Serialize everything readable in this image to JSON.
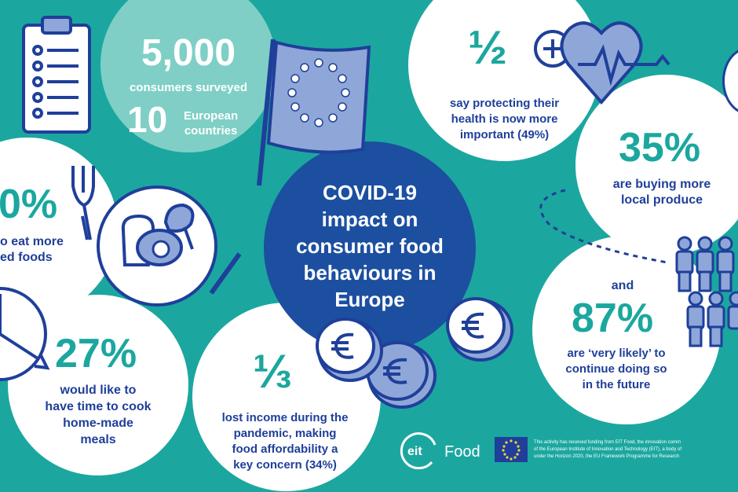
{
  "survey": {
    "consumers_number": "5,000",
    "consumers_label": "consumers surveyed",
    "countries_number": "10",
    "countries_label_line1": "European",
    "countries_label_line2": "countries"
  },
  "center": {
    "line1": "COVID-19",
    "line2": "impact on",
    "line3": "consumer food",
    "line4": "behaviours in",
    "line5": "Europe"
  },
  "stat_health": {
    "value": "½",
    "line1": "say protecting their",
    "line2": "health is now more",
    "line3": "important (49%)"
  },
  "stat_processed": {
    "value": "0%",
    "line1": "o eat more",
    "line2": "ed foods"
  },
  "stat_cook": {
    "value": "27%",
    "line1": "would like to",
    "line2": "have time to cook",
    "line3": "home-made",
    "line4": "meals"
  },
  "stat_income": {
    "value": "⅓",
    "line1": "lost income during the",
    "line2": "pandemic, making",
    "line3": "food affordability a",
    "line4": "key concern (34%)"
  },
  "stat_local": {
    "value": "35%",
    "line1": "are buying more",
    "line2": "local produce"
  },
  "stat_continue": {
    "prefix": "and",
    "value": "87%",
    "line1": "are ‘very likely’ to",
    "line2": "continue doing so",
    "line3": "in the future"
  },
  "footer": {
    "logo_eit": "eit",
    "logo_food": "Food",
    "funding_line1": "This activity has received funding from EIT Food, the innovation comm",
    "funding_line2": "of the European Institute of Innovation and Technology (EIT), a body of",
    "funding_line3": "under the Horizon 2020, the EU Framework Programme for Research"
  },
  "colors": {
    "background": "#1ba79f",
    "teal_bubble": "#7fcfc6",
    "navy": "#1f3f9a",
    "light_blue": "#8fa7d8",
    "white": "#ffffff"
  },
  "icons": [
    "clipboard-icon",
    "eu-flag-icon",
    "heart-plus-icon",
    "plate-icon",
    "clock-icon",
    "coins-icon",
    "people-icon"
  ]
}
